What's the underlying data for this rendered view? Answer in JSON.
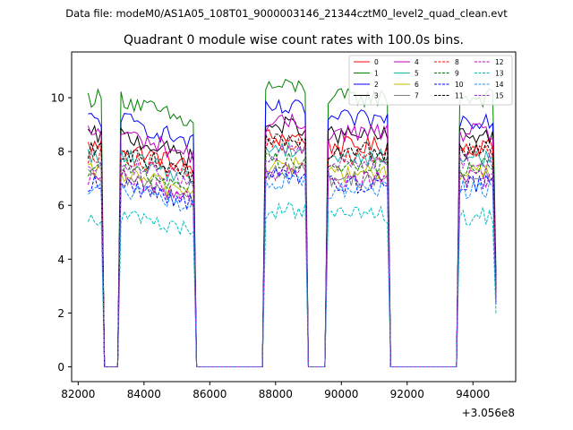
{
  "figure": {
    "suptitle": "Data file: modeM0/AS1A05_108T01_9000003146_21344cztM0_level2_quad_clean.evt"
  },
  "chart_data": {
    "type": "line",
    "title": "Quadrant 0 module wise count rates with 100.0s bins.",
    "xlabel": "",
    "ylabel": "",
    "x_offset_label": "+3.056e8",
    "xlim": [
      81800,
      95300
    ],
    "ylim": [
      -0.55,
      11.7
    ],
    "x_ticks": [
      82000,
      84000,
      86000,
      88000,
      90000,
      92000,
      94000
    ],
    "x_tick_labels": [
      "82000",
      "84000",
      "86000",
      "88000",
      "90000",
      "92000",
      "94000"
    ],
    "y_ticks": [
      0,
      2,
      4,
      6,
      8,
      10
    ],
    "y_tick_labels": [
      "0",
      "2",
      "4",
      "6",
      "8",
      "10"
    ],
    "grid": false,
    "legend_position": "top-right",
    "legend_columns": 4,
    "segments": [
      {
        "start": 82300,
        "end": 82700
      },
      {
        "start": 83300,
        "end": 85500
      },
      {
        "start": 87700,
        "end": 88900
      },
      {
        "start": 89600,
        "end": 91400
      },
      {
        "start": 93600,
        "end": 94600
      }
    ],
    "gaps": [
      {
        "from": 82800,
        "to": 83200
      },
      {
        "from": 85600,
        "to": 87600
      },
      {
        "from": 89000,
        "to": 89500
      },
      {
        "from": 91500,
        "to": 93500
      }
    ],
    "bin_size_s": 100,
    "series": [
      {
        "name": "0",
        "color": "#ff0000",
        "dash": "solid",
        "level": 8.2
      },
      {
        "name": "1",
        "color": "#008000",
        "dash": "solid",
        "level": 10.0
      },
      {
        "name": "2",
        "color": "#0000ff",
        "dash": "solid",
        "level": 9.2
      },
      {
        "name": "3",
        "color": "#000000",
        "dash": "solid",
        "level": 8.6
      },
      {
        "name": "4",
        "color": "#bf00bf",
        "dash": "solid",
        "level": 8.7
      },
      {
        "name": "5",
        "color": "#20b2aa",
        "dash": "solid",
        "level": 7.8
      },
      {
        "name": "6",
        "color": "#bfbf00",
        "dash": "solid",
        "level": 7.2
      },
      {
        "name": "7",
        "color": "#808080",
        "dash": "solid",
        "level": 7.0
      },
      {
        "name": "8",
        "color": "#ff0000",
        "dash": "dashed",
        "level": 7.9
      },
      {
        "name": "9",
        "color": "#008000",
        "dash": "dashed",
        "level": 7.4
      },
      {
        "name": "10",
        "color": "#0000ff",
        "dash": "dashed",
        "level": 6.8
      },
      {
        "name": "11",
        "color": "#000000",
        "dash": "dashed",
        "level": 8.0
      },
      {
        "name": "12",
        "color": "#bf00bf",
        "dash": "dashed",
        "level": 7.0
      },
      {
        "name": "13",
        "color": "#00bfbf",
        "dash": "dashed",
        "level": 5.6
      },
      {
        "name": "14",
        "color": "#1e90ff",
        "dash": "dashed",
        "level": 6.6
      },
      {
        "name": "15",
        "color": "#9932cc",
        "dash": "dashed",
        "level": 7.6
      }
    ]
  }
}
